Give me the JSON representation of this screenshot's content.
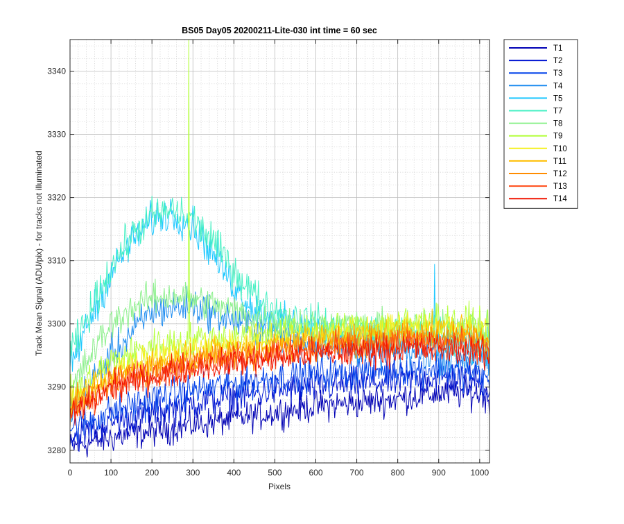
{
  "chart_data": {
    "type": "line",
    "title": "BS05 Day05 20200211-Lite-030 int time = 60 sec",
    "xlabel": "Pixels",
    "ylabel": "Track Mean Signal (ADU/pix) - for tracks not illuminated",
    "xlim": [
      0,
      1024
    ],
    "ylim": [
      3278,
      3345
    ],
    "xticks": [
      0,
      100,
      200,
      300,
      400,
      500,
      600,
      700,
      800,
      900,
      1000
    ],
    "yticks": [
      3280,
      3290,
      3300,
      3310,
      3320,
      3330,
      3340
    ],
    "x_minor_step": 20,
    "y_minor_step": 2,
    "grid": true,
    "legend_position": "outside-top-right",
    "series": [
      {
        "name": "T1",
        "color": "#0000b4",
        "noise": 2.2,
        "x": [
          0,
          100,
          200,
          300,
          400,
          500,
          600,
          700,
          800,
          900,
          1000,
          1024
        ],
        "y": [
          3280.5,
          3282.0,
          3283.0,
          3284.0,
          3285.0,
          3286.0,
          3287.0,
          3287.5,
          3288.2,
          3289.0,
          3289.0,
          3288.0
        ]
      },
      {
        "name": "T2",
        "color": "#0014d2",
        "noise": 2.4,
        "x": [
          0,
          100,
          200,
          300,
          400,
          500,
          600,
          700,
          800,
          900,
          1000,
          1024
        ],
        "y": [
          3282.0,
          3284.5,
          3286.0,
          3287.5,
          3288.5,
          3289.5,
          3290.0,
          3290.5,
          3291.0,
          3291.5,
          3291.0,
          3289.5
        ]
      },
      {
        "name": "T3",
        "color": "#0041ea",
        "noise": 2.4,
        "x": [
          0,
          100,
          200,
          300,
          400,
          500,
          600,
          700,
          800,
          900,
          1000,
          1024
        ],
        "y": [
          3283.5,
          3286.0,
          3288.0,
          3289.5,
          3290.5,
          3291.5,
          3292.0,
          3292.5,
          3292.8,
          3293.0,
          3292.0,
          3290.5
        ]
      },
      {
        "name": "T4",
        "color": "#1e8cf0",
        "noise": 2.6,
        "x": [
          0,
          100,
          200,
          300,
          400,
          500,
          600,
          700,
          800,
          900,
          1000,
          1024
        ],
        "y": [
          3286.0,
          3295.0,
          3302.0,
          3303.0,
          3300.5,
          3298.5,
          3297.0,
          3296.0,
          3295.5,
          3295.0,
          3294.5,
          3293.5
        ]
      },
      {
        "name": "T5",
        "color": "#1ec8ff",
        "noise": 2.6,
        "x": [
          0,
          50,
          100,
          150,
          200,
          250,
          300,
          350,
          400,
          450,
          500,
          600,
          700,
          800,
          900,
          1000,
          1024
        ],
        "y": [
          3293.0,
          3301.0,
          3308.0,
          3313.0,
          3316.5,
          3317.5,
          3315.5,
          3311.0,
          3306.0,
          3302.5,
          3300.5,
          3299.0,
          3298.0,
          3297.5,
          3297.0,
          3296.0,
          3295.0
        ]
      },
      {
        "name": "T7",
        "color": "#46f0c3",
        "noise": 2.6,
        "x": [
          0,
          50,
          100,
          150,
          200,
          250,
          300,
          350,
          400,
          450,
          500,
          600,
          700,
          800,
          900,
          1000,
          1024
        ],
        "y": [
          3295.0,
          3302.0,
          3309.0,
          3314.0,
          3317.0,
          3318.0,
          3316.5,
          3313.0,
          3308.5,
          3304.5,
          3302.0,
          3300.0,
          3299.0,
          3298.5,
          3298.5,
          3298.0,
          3297.0
        ]
      },
      {
        "name": "T8",
        "color": "#8cf08c",
        "noise": 2.4,
        "x": [
          0,
          50,
          100,
          150,
          200,
          250,
          300,
          350,
          400,
          450,
          500,
          600,
          700,
          800,
          900,
          1000,
          1024
        ],
        "y": [
          3289.0,
          3295.0,
          3300.0,
          3302.5,
          3304.0,
          3304.5,
          3304.0,
          3303.0,
          3302.0,
          3301.0,
          3300.5,
          3300.0,
          3299.5,
          3299.5,
          3300.0,
          3299.5,
          3298.5
        ]
      },
      {
        "name": "T9",
        "color": "#b4ff3c",
        "noise": 2.4,
        "x": [
          0,
          100,
          200,
          300,
          400,
          500,
          600,
          700,
          800,
          900,
          1000,
          1024
        ],
        "y": [
          3288.5,
          3294.0,
          3296.5,
          3297.5,
          3298.0,
          3298.5,
          3299.0,
          3299.5,
          3300.0,
          3300.5,
          3300.0,
          3298.5
        ]
      },
      {
        "name": "T10",
        "color": "#f5f01e",
        "noise": 2.2,
        "x": [
          0,
          100,
          200,
          300,
          400,
          500,
          600,
          700,
          800,
          900,
          1000,
          1024
        ],
        "y": [
          3287.5,
          3292.0,
          3294.5,
          3296.0,
          3296.8,
          3297.5,
          3298.2,
          3298.8,
          3299.3,
          3299.8,
          3299.3,
          3298.0
        ]
      },
      {
        "name": "T11",
        "color": "#ffbe00",
        "noise": 2.2,
        "x": [
          0,
          100,
          200,
          300,
          400,
          500,
          600,
          700,
          800,
          900,
          1000,
          1024
        ],
        "y": [
          3287.0,
          3291.5,
          3293.5,
          3295.0,
          3296.0,
          3296.8,
          3297.5,
          3298.0,
          3298.5,
          3299.0,
          3298.5,
          3297.0
        ]
      },
      {
        "name": "T12",
        "color": "#ff8c00",
        "noise": 2.2,
        "x": [
          0,
          100,
          200,
          300,
          400,
          500,
          600,
          700,
          800,
          900,
          1000,
          1024
        ],
        "y": [
          3286.5,
          3291.0,
          3292.8,
          3294.2,
          3295.2,
          3296.0,
          3296.7,
          3297.2,
          3297.7,
          3298.0,
          3297.5,
          3296.0
        ]
      },
      {
        "name": "T13",
        "color": "#ff4a14",
        "noise": 2.2,
        "x": [
          0,
          100,
          200,
          300,
          400,
          500,
          600,
          700,
          800,
          900,
          1000,
          1024
        ],
        "y": [
          3286.0,
          3290.5,
          3292.2,
          3293.5,
          3294.5,
          3295.2,
          3295.8,
          3296.3,
          3296.7,
          3297.0,
          3296.5,
          3295.0
        ]
      },
      {
        "name": "T14",
        "color": "#f01400",
        "noise": 2.2,
        "x": [
          0,
          100,
          200,
          300,
          400,
          500,
          600,
          700,
          800,
          900,
          1000,
          1024
        ],
        "y": [
          3285.5,
          3290.0,
          3291.7,
          3293.0,
          3294.0,
          3294.6,
          3295.2,
          3295.6,
          3296.0,
          3296.2,
          3295.8,
          3294.3
        ]
      }
    ],
    "annotations": [
      {
        "type": "spike",
        "series": "T9",
        "x": 290,
        "y": 3345
      },
      {
        "type": "spike",
        "series": "T5",
        "x": 890,
        "y": 3309.5
      }
    ]
  }
}
